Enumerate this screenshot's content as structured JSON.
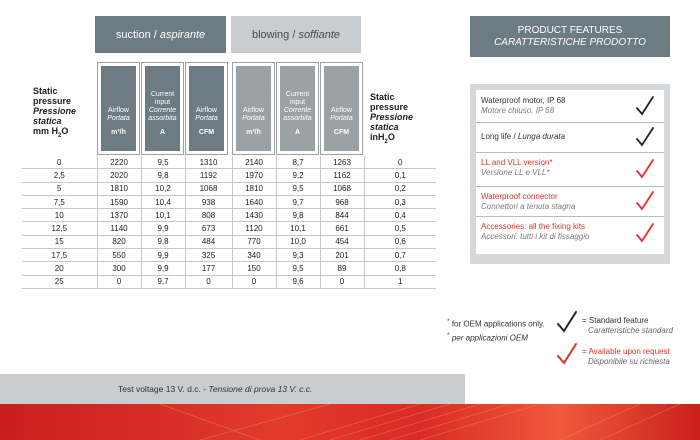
{
  "headers": {
    "suction": {
      "en": "suction",
      "it": "aspirante"
    },
    "blowing": {
      "en": "blowing",
      "it": "soffiante"
    },
    "features": {
      "en": "PRODUCT FEATURES",
      "it": "CARATTERISTICHE PRODOTTO"
    }
  },
  "left_head": {
    "l1": "Static",
    "l2": "pressure",
    "l3": "Pressione",
    "l4": "statica",
    "l5": "mm H",
    "sub": "2",
    "l5b": "O"
  },
  "right_head": {
    "l1": "Static",
    "l2": "pressure",
    "l3": "Pressione",
    "l4": "statica",
    "l5": "inH",
    "sub": "2",
    "l5b": "O"
  },
  "col_heads": {
    "airflow": {
      "en": "Airflow",
      "it": "Portata"
    },
    "current": {
      "en1": "Current",
      "en2": "input",
      "it1": "Corrente",
      "it2": "assorbita"
    },
    "unit_m3h": "m³/h",
    "unit_a": "A",
    "unit_cfm": "CFM"
  },
  "table_rows": [
    [
      "0",
      "2220",
      "9,5",
      "1310",
      "2140",
      "8,7",
      "1263",
      "0"
    ],
    [
      "2,5",
      "2020",
      "9,8",
      "1192",
      "1970",
      "9,2",
      "1162",
      "0,1"
    ],
    [
      "5",
      "1810",
      "10,2",
      "1068",
      "1810",
      "9,5",
      "1068",
      "0,2"
    ],
    [
      "7,5",
      "1590",
      "10,4",
      "938",
      "1640",
      "9,7",
      "968",
      "0,3"
    ],
    [
      "10",
      "1370",
      "10,1",
      "808",
      "1430",
      "9,8",
      "844",
      "0,4"
    ],
    [
      "12,5",
      "1140",
      "9,9",
      "673",
      "1120",
      "10,1",
      "661",
      "0,5"
    ],
    [
      "15",
      "820",
      "9,8",
      "484",
      "770",
      "10,0",
      "454",
      "0,6"
    ],
    [
      "17,5",
      "550",
      "9,9",
      "325",
      "340",
      "9,3",
      "201",
      "0,7"
    ],
    [
      "20",
      "300",
      "9,9",
      "177",
      "150",
      "9,5",
      "89",
      "0,8"
    ],
    [
      "25",
      "0",
      "9,7",
      "0",
      "0",
      "9,6",
      "0",
      "1"
    ]
  ],
  "features": [
    {
      "en": "Waterproof motor, IP 68",
      "it": "Motore chiuso, IP 68",
      "type": "standard"
    },
    {
      "en": "Long life",
      "sep": " / ",
      "it": "Lunga durata",
      "type": "standard"
    },
    {
      "en": "LL and VLL version*",
      "it": "Versione LL e VLL*",
      "type": "request"
    },
    {
      "en": "Waterproof connector",
      "it": "Connettori a tenuta stagna",
      "type": "request"
    },
    {
      "en": "Accessories: all the fixing kits",
      "it": "Accessori: tutti i kit di fissaggio",
      "type": "request"
    }
  ],
  "notes": {
    "star": "*",
    "oem_en": "for OEM applications only.",
    "oem_it": "per applicazioni OEM"
  },
  "legend": {
    "standard_en": "= Standard feature",
    "standard_it": "Caratteristiche standard",
    "request_en": "= Available upon request",
    "request_it": "Disponibile su richiesta"
  },
  "footer": {
    "en": "Test voltage 13 V. d.c. - ",
    "it": "Tensione di prova 13 V. c.c."
  },
  "colors": {
    "dark": "#6d7b82",
    "light": "#c9cdcf",
    "red": "#d9322c",
    "check_black": "#222222"
  }
}
